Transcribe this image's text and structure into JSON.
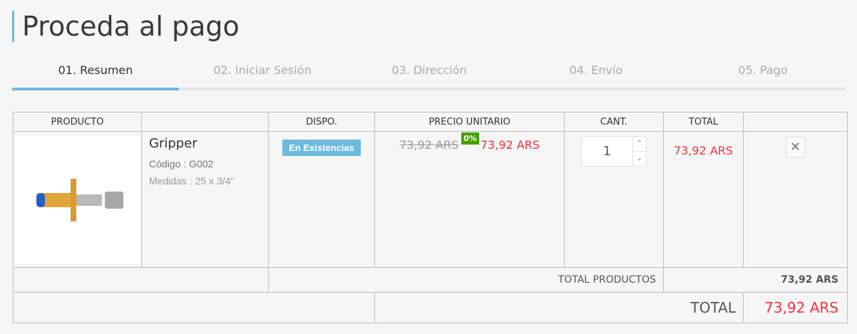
{
  "page_title": "Proceda al pago",
  "steps": [
    {
      "label": "01. Resumen",
      "active": true
    },
    {
      "label": "02. Iniciar Sesión"
    },
    {
      "label": "03. Dirección"
    },
    {
      "label": "04. Envío"
    },
    {
      "label": "05. Pago"
    }
  ],
  "table": {
    "headers": {
      "product": "PRODUCTO",
      "availability": "DISPO.",
      "unit_price": "PRECIO UNITARIO",
      "quantity": "CANT.",
      "total": "TOTAL"
    },
    "item": {
      "name": "Gripper",
      "code": "Código : G002",
      "size": "Medidas : 25 x 3/4\"",
      "availability": "En Existencias",
      "old_price": "73,92 ARS",
      "discount": "0%",
      "price": "73,92 ARS",
      "quantity": "1",
      "total": "73,92 ARS"
    },
    "total_products_label": "TOTAL PRODUCTOS",
    "total_products_value": "73,92 ARS",
    "total_label": "TOTAL",
    "total_value": "73,92 ARS"
  },
  "colors": {
    "accent": "#6fb7d9",
    "price_red": "#f13340",
    "discount_green": "#46a000"
  }
}
